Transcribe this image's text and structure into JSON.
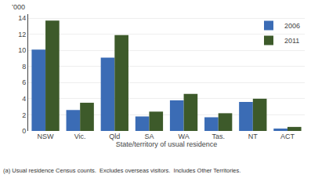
{
  "chart_data": {
    "type": "bar",
    "categories": [
      "NSW",
      "Vic.",
      "Qld",
      "SA",
      "WA",
      "Tas.",
      "NT",
      "ACT"
    ],
    "series": [
      {
        "name": "2006",
        "color": "#3B6CB5",
        "values": [
          10.1,
          2.6,
          9.1,
          1.8,
          3.8,
          1.7,
          3.6,
          0.3
        ]
      },
      {
        "name": "2011",
        "color": "#3D5A2A",
        "values": [
          13.7,
          3.5,
          11.9,
          2.4,
          4.6,
          2.2,
          4.0,
          0.5
        ]
      }
    ],
    "xlabel": "State/territory of usual residence",
    "ylabel": "’000",
    "ylim": [
      0,
      14.5
    ],
    "yticks": [
      0,
      2,
      4,
      6,
      8,
      10,
      12,
      14
    ],
    "grid": true,
    "legend": "upper right",
    "annotations": [
      "(a) Usual residence Census counts.  Excludes overseas visitors.  Includes Other Territories."
    ]
  }
}
